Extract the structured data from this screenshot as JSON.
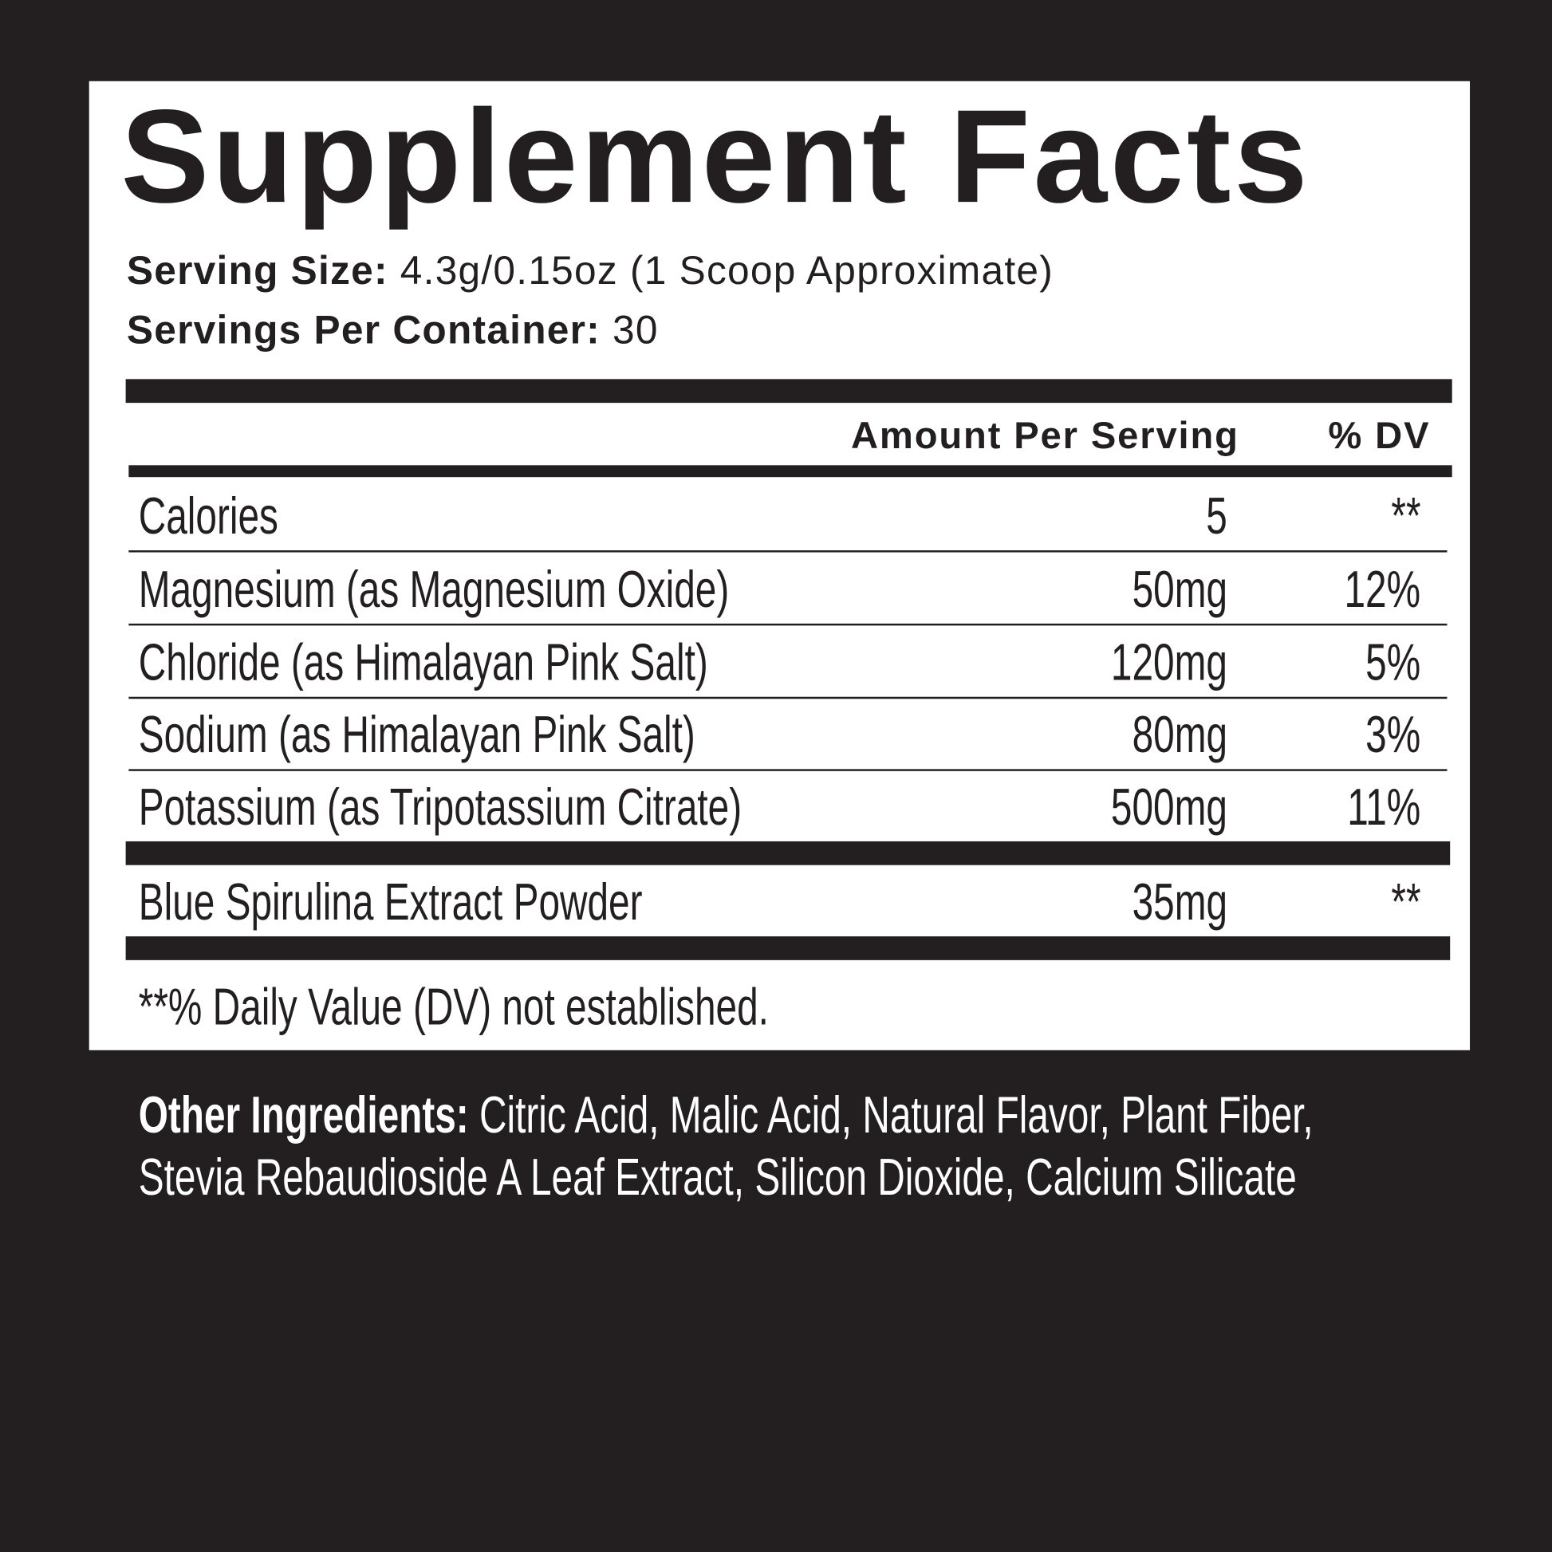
{
  "title": "Supplement Facts",
  "serving_size": {
    "label": "Serving Size:",
    "value": "4.3g/0.15oz (1 Scoop Approximate)"
  },
  "servings_per_container": {
    "label": "Servings Per Container:",
    "value": "30"
  },
  "table_header": {
    "amount": "Amount Per Serving",
    "dv": "% DV"
  },
  "rows": [
    {
      "name": "Calories",
      "amount": "5",
      "dv": "**"
    },
    {
      "name": "Magnesium (as Magnesium Oxide)",
      "amount": "50mg",
      "dv": "12%"
    },
    {
      "name": "Chloride (as Himalayan Pink Salt)",
      "amount": "120mg",
      "dv": "5%"
    },
    {
      "name": "Sodium (as Himalayan Pink Salt)",
      "amount": "80mg",
      "dv": "3%"
    },
    {
      "name": "Potassium (as Tripotassium Citrate)",
      "amount": "500mg",
      "dv": "11%"
    }
  ],
  "other_rows": [
    {
      "name": "Blue Spirulina Extract Powder",
      "amount": "35mg",
      "dv": "**"
    }
  ],
  "footnote": "**% Daily Value (DV) not established.",
  "other_ingredients": {
    "label": "Other Ingredients:",
    "line1": "Citric Acid, Malic Acid, Natural Flavor, Plant Fiber,",
    "line2": "Stevia Rebaudioside A Leaf Extract, Silicon Dioxide, Calcium Silicate"
  },
  "colors": {
    "background": "#231f20",
    "panel": "#ffffff",
    "text": "#231f20"
  }
}
